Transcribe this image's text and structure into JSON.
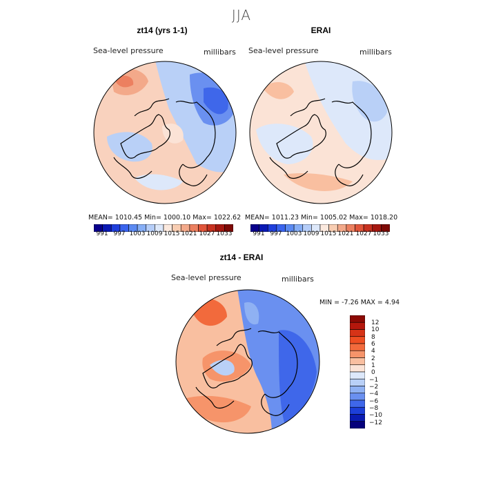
{
  "title": "JJA",
  "panels": [
    {
      "title": "zt14 (yrs 1-1)",
      "variable": "Sea-level pressure",
      "units": "millibars",
      "stats": "MEAN= 1010.45   Min= 1000.10   Max= 1022.62"
    },
    {
      "title": "ERAI",
      "variable": "Sea-level pressure",
      "units": "millibars",
      "stats": "MEAN= 1011.23   Min= 1005.02   Max= 1018.20"
    }
  ],
  "abs_colorbar": {
    "labels": [
      "991",
      "997",
      "1003",
      "1009",
      "1015",
      "1021",
      "1027",
      "1033"
    ],
    "colors": [
      "#08008c",
      "#0a19b4",
      "#1f3fdc",
      "#3a64ee",
      "#5b8af2",
      "#86aef6",
      "#b5cdf8",
      "#dde8fa",
      "#fbe9de",
      "#f8cdb2",
      "#f3a98a",
      "#ec8060",
      "#e1553a",
      "#c83220",
      "#a61810",
      "#7e0a06"
    ]
  },
  "diff_panel": {
    "title": "zt14 - ERAI",
    "variable": "Sea-level pressure",
    "units": "millibars",
    "stats": "MIN =   -7.26  MAX =    4.94"
  },
  "diff_colorbar": {
    "labels": [
      "12",
      "10",
      "8",
      "6",
      "4",
      "2",
      "1",
      "0",
      "−1",
      "−2",
      "−4",
      "−6",
      "−8",
      "−10",
      "−12"
    ],
    "colors": [
      "#8c0a04",
      "#b5170c",
      "#d63317",
      "#ee4e22",
      "#f26a3c",
      "#f6946a",
      "#f9bfa0",
      "#fbe3d6",
      "#dde8fa",
      "#b9d0f7",
      "#8fb1f3",
      "#6a90f0",
      "#3f67ea",
      "#1d3fd9",
      "#0a1bb2",
      "#05007c"
    ]
  },
  "colors": {
    "land_outline": "#000000",
    "title_gray": "#444444"
  }
}
